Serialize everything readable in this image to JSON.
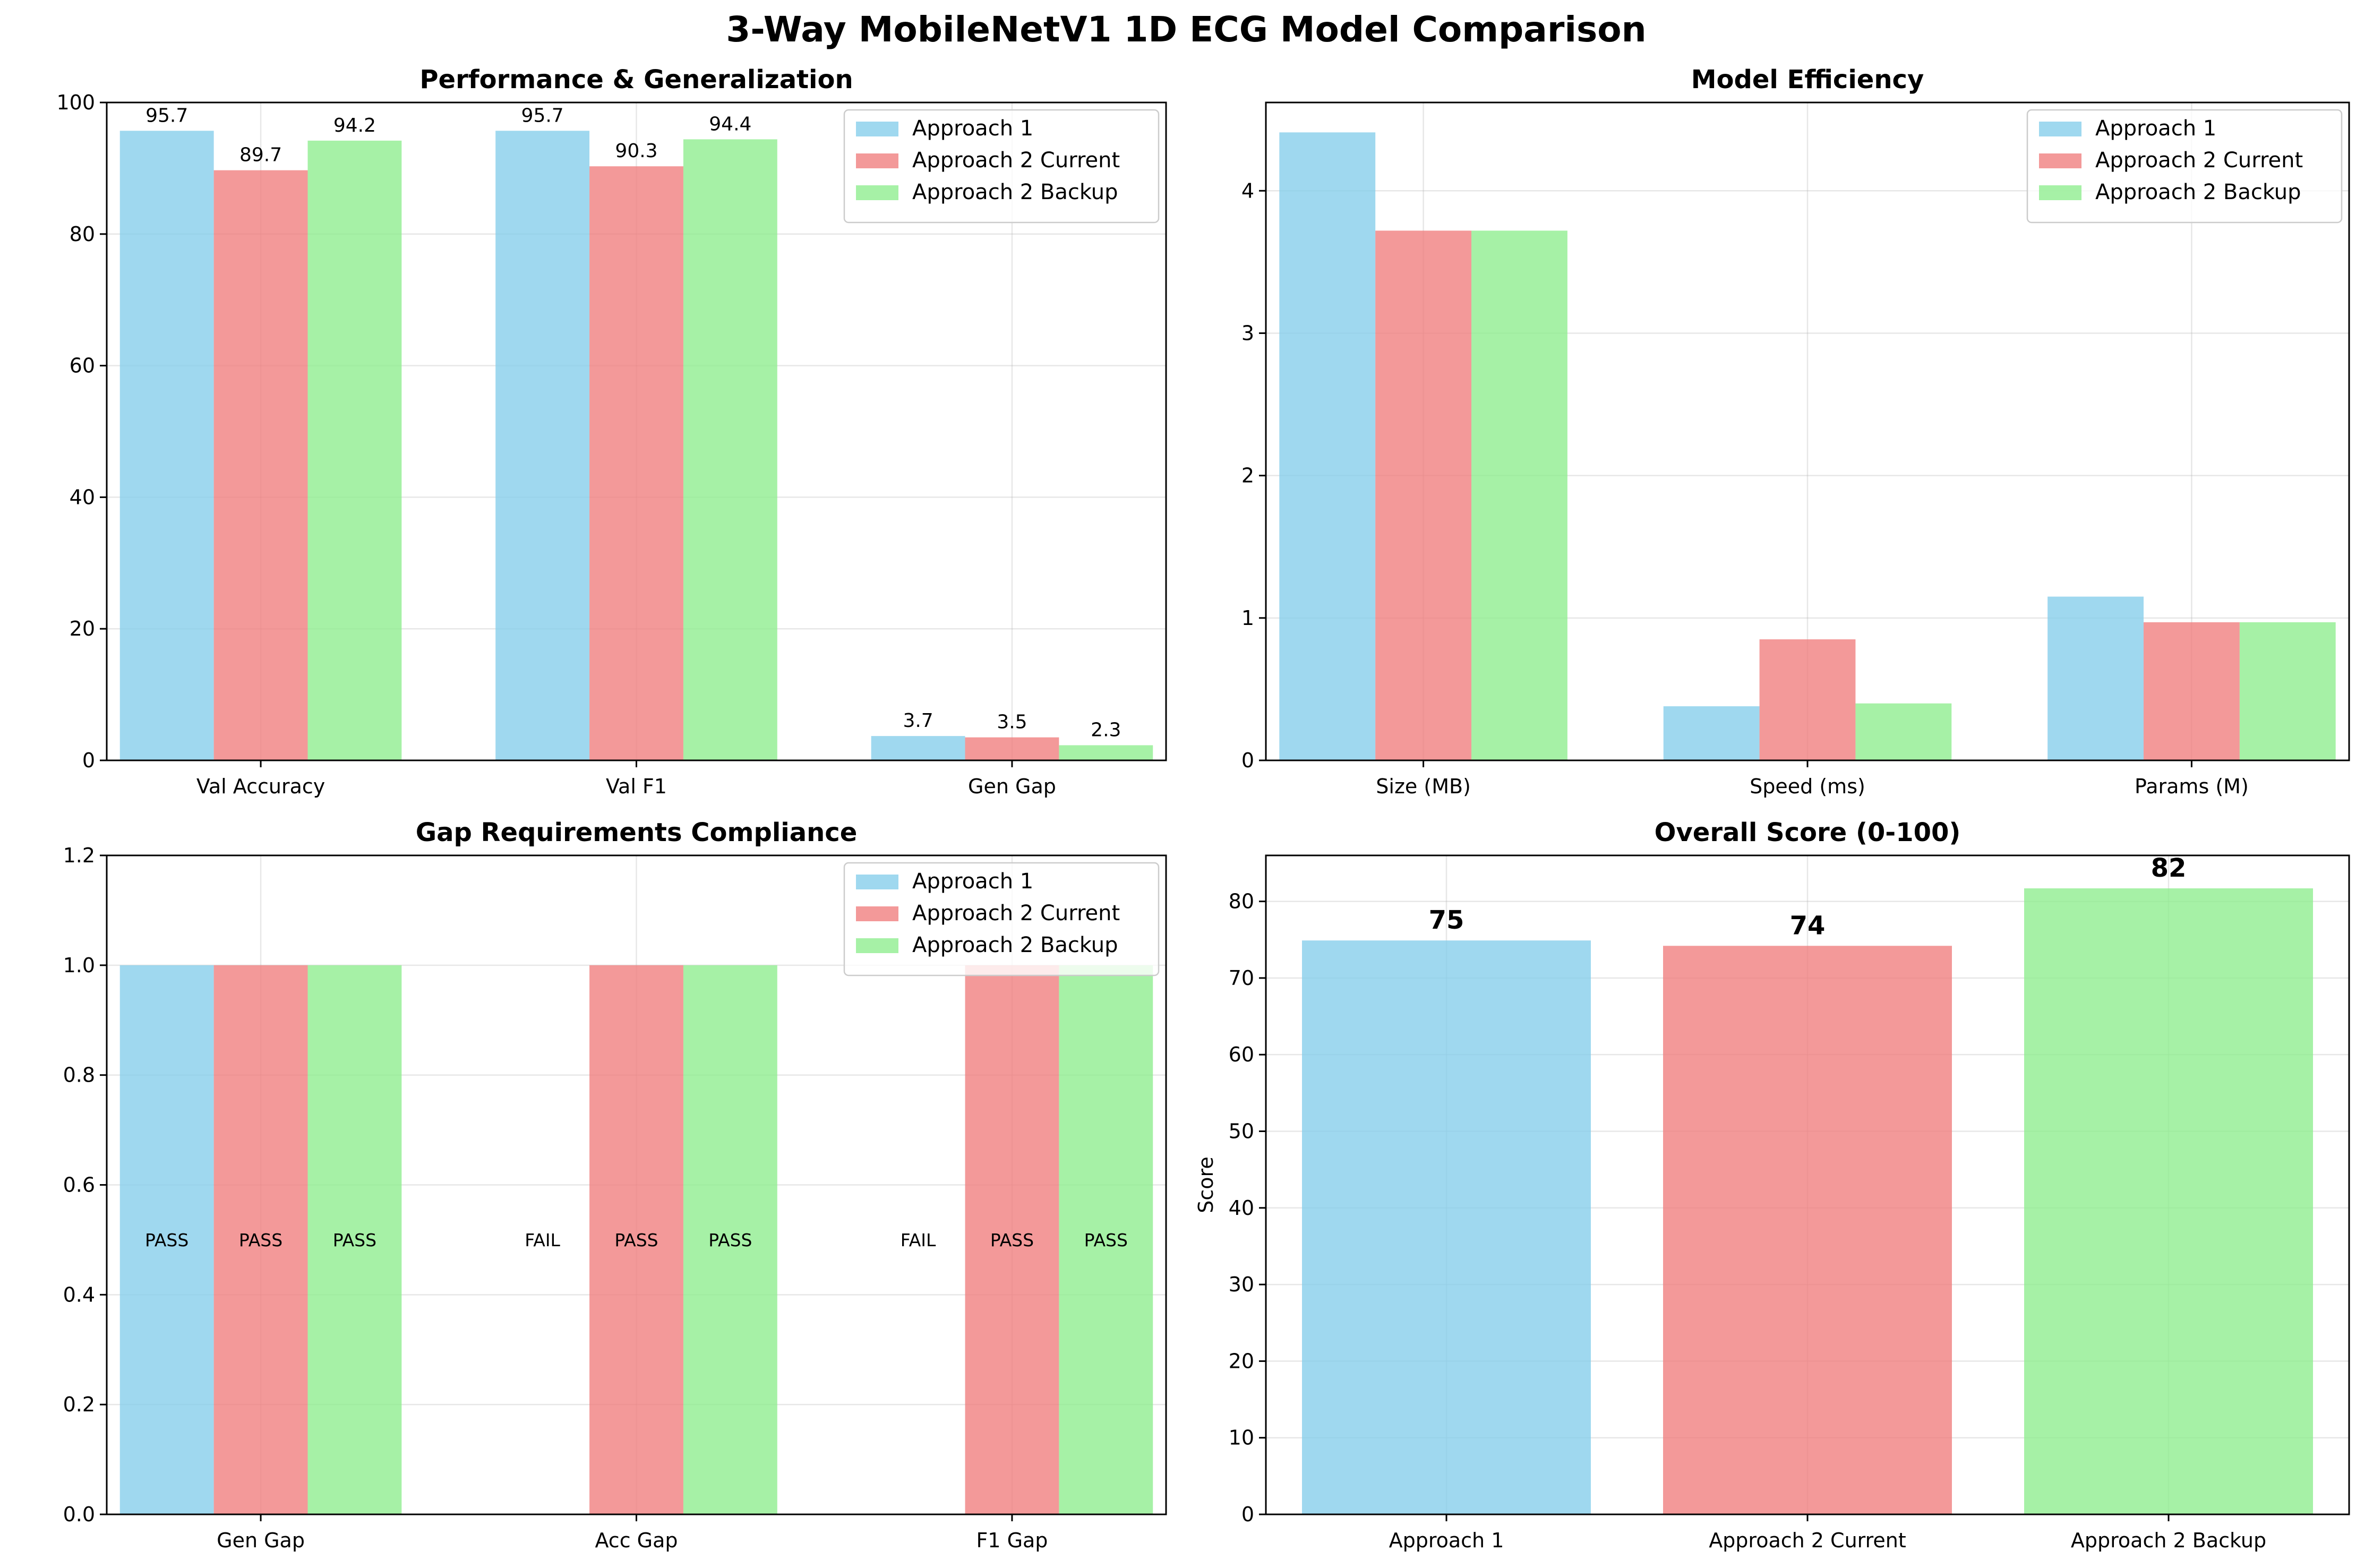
{
  "figure": {
    "suptitle": "3-Way MobileNetV1 1D ECG Model Comparison"
  },
  "colors": {
    "Approach 1": "#87ceeb",
    "Approach 2 Current": "#f08080",
    "Approach 2 Backup": "#90ee90"
  },
  "chart_data": [
    {
      "type": "bar",
      "title": "Performance & Generalization",
      "xlabel": "",
      "ylabel": "",
      "categories": [
        "Val Accuracy",
        "Val F1",
        "Gen Gap"
      ],
      "ylim": [
        0,
        100
      ],
      "yticks": [
        0,
        20,
        40,
        60,
        80,
        100
      ],
      "grid": true,
      "legend": "top-right",
      "series": [
        {
          "name": "Approach 1",
          "values": [
            95.7,
            95.7,
            3.7
          ],
          "labels": [
            "95.7",
            "95.7",
            "3.7"
          ]
        },
        {
          "name": "Approach 2 Current",
          "values": [
            89.7,
            90.3,
            3.5
          ],
          "labels": [
            "89.7",
            "90.3",
            "3.5"
          ]
        },
        {
          "name": "Approach 2 Backup",
          "values": [
            94.2,
            94.4,
            2.3
          ],
          "labels": [
            "94.2",
            "94.4",
            "2.3"
          ]
        }
      ]
    },
    {
      "type": "bar",
      "title": "Model Efficiency",
      "xlabel": "",
      "ylabel": "",
      "categories": [
        "Size (MB)",
        "Speed (ms)",
        "Params (M)"
      ],
      "ylim": [
        0,
        4.62
      ],
      "yticks": [
        0,
        1,
        2,
        3,
        4
      ],
      "grid": true,
      "legend": "top-right",
      "series": [
        {
          "name": "Approach 1",
          "values": [
            4.41,
            0.38,
            1.15
          ]
        },
        {
          "name": "Approach 2 Current",
          "values": [
            3.72,
            0.85,
            0.97
          ]
        },
        {
          "name": "Approach 2 Backup",
          "values": [
            3.72,
            0.4,
            0.97
          ]
        }
      ]
    },
    {
      "type": "bar",
      "title": "Gap Requirements Compliance",
      "xlabel": "",
      "ylabel": "",
      "categories": [
        "Gen Gap",
        "Acc Gap",
        "F1 Gap"
      ],
      "ylim": [
        0,
        1.2
      ],
      "yticks": [
        0.0,
        0.2,
        0.4,
        0.6,
        0.8,
        1.0,
        1.2
      ],
      "ytick_labels": [
        "0.0",
        "0.2",
        "0.4",
        "0.6",
        "0.8",
        "1.0",
        "1.2"
      ],
      "grid": true,
      "legend": "top-right",
      "series": [
        {
          "name": "Approach 1",
          "values": [
            1,
            0,
            0
          ],
          "status": [
            "PASS",
            "FAIL",
            "FAIL"
          ]
        },
        {
          "name": "Approach 2 Current",
          "values": [
            1,
            1,
            1
          ],
          "status": [
            "PASS",
            "PASS",
            "PASS"
          ]
        },
        {
          "name": "Approach 2 Backup",
          "values": [
            1,
            1,
            1
          ],
          "status": [
            "PASS",
            "PASS",
            "PASS"
          ]
        }
      ]
    },
    {
      "type": "bar",
      "title": "Overall Score (0-100)",
      "xlabel": "",
      "ylabel": "Score",
      "categories": [
        "Approach 1",
        "Approach 2 Current",
        "Approach 2 Backup"
      ],
      "values": [
        74.9,
        74.2,
        81.7
      ],
      "labels": [
        "75",
        "74",
        "82"
      ],
      "ylim": [
        0,
        86
      ],
      "yticks": [
        0,
        10,
        20,
        30,
        40,
        50,
        60,
        70,
        80
      ],
      "grid": true
    }
  ]
}
